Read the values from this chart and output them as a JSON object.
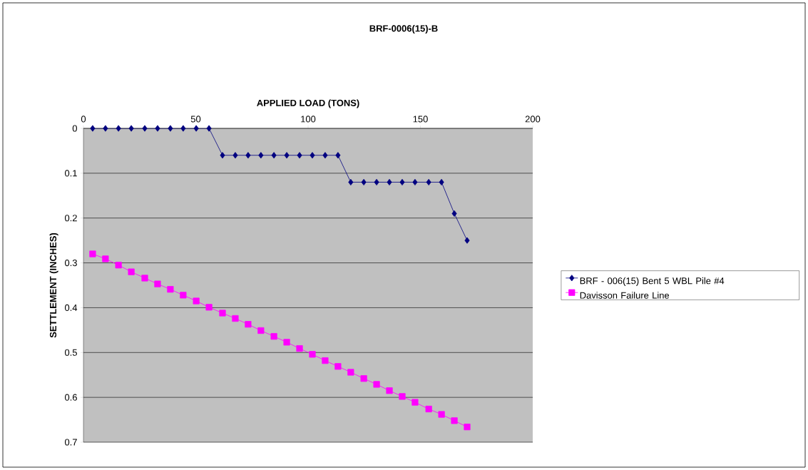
{
  "chart_data": {
    "type": "line",
    "title": "BRF-0006(15)-B",
    "xlabel": "APPLIED LOAD (TONS)",
    "ylabel": "SETTLEMENT (INCHES)",
    "xlim": [
      0,
      200
    ],
    "xticks": [
      0,
      50,
      100,
      150,
      200
    ],
    "ylim": [
      0.7,
      0
    ],
    "yticks": [
      0,
      0.1,
      0.2,
      0.3,
      0.4,
      0.5,
      0.6,
      0.7
    ],
    "grid": "y",
    "legend": "right",
    "series": [
      {
        "name": "BRF - 006(15) Bent 5 WBL Pile #4",
        "color": "#000080",
        "marker": "diamond",
        "x": [
          4.1,
          9.8,
          15.6,
          21.3,
          27.3,
          33.0,
          38.7,
          44.4,
          50.2,
          55.9,
          61.9,
          67.6,
          73.3,
          79.0,
          84.8,
          90.5,
          96.2,
          101.9,
          107.6,
          113.3,
          119.0,
          124.8,
          130.5,
          136.2,
          141.9,
          147.6,
          153.7,
          159.4,
          165.1,
          170.8
        ],
        "values": [
          0,
          0,
          0,
          0,
          0,
          0,
          0,
          0,
          0,
          0,
          0.06,
          0.06,
          0.06,
          0.06,
          0.06,
          0.06,
          0.06,
          0.06,
          0.06,
          0.06,
          0.12,
          0.12,
          0.12,
          0.12,
          0.12,
          0.12,
          0.12,
          0.12,
          0.19,
          0.25
        ]
      },
      {
        "name": "Davisson Failure Line",
        "color": "#ff00ff",
        "marker": "square",
        "x": [
          4.1,
          9.8,
          15.6,
          21.3,
          27.3,
          33.0,
          38.7,
          44.4,
          50.2,
          55.9,
          61.9,
          67.6,
          73.3,
          79.0,
          84.8,
          90.5,
          96.2,
          101.9,
          107.6,
          113.3,
          119.0,
          124.8,
          130.5,
          136.2,
          141.9,
          147.6,
          153.7,
          159.4,
          165.1,
          170.8
        ],
        "values": [
          0.28,
          0.291,
          0.305,
          0.32,
          0.334,
          0.347,
          0.359,
          0.372,
          0.385,
          0.399,
          0.412,
          0.424,
          0.437,
          0.451,
          0.464,
          0.477,
          0.491,
          0.504,
          0.518,
          0.531,
          0.544,
          0.558,
          0.571,
          0.585,
          0.598,
          0.611,
          0.626,
          0.638,
          0.652,
          0.666
        ]
      }
    ]
  }
}
